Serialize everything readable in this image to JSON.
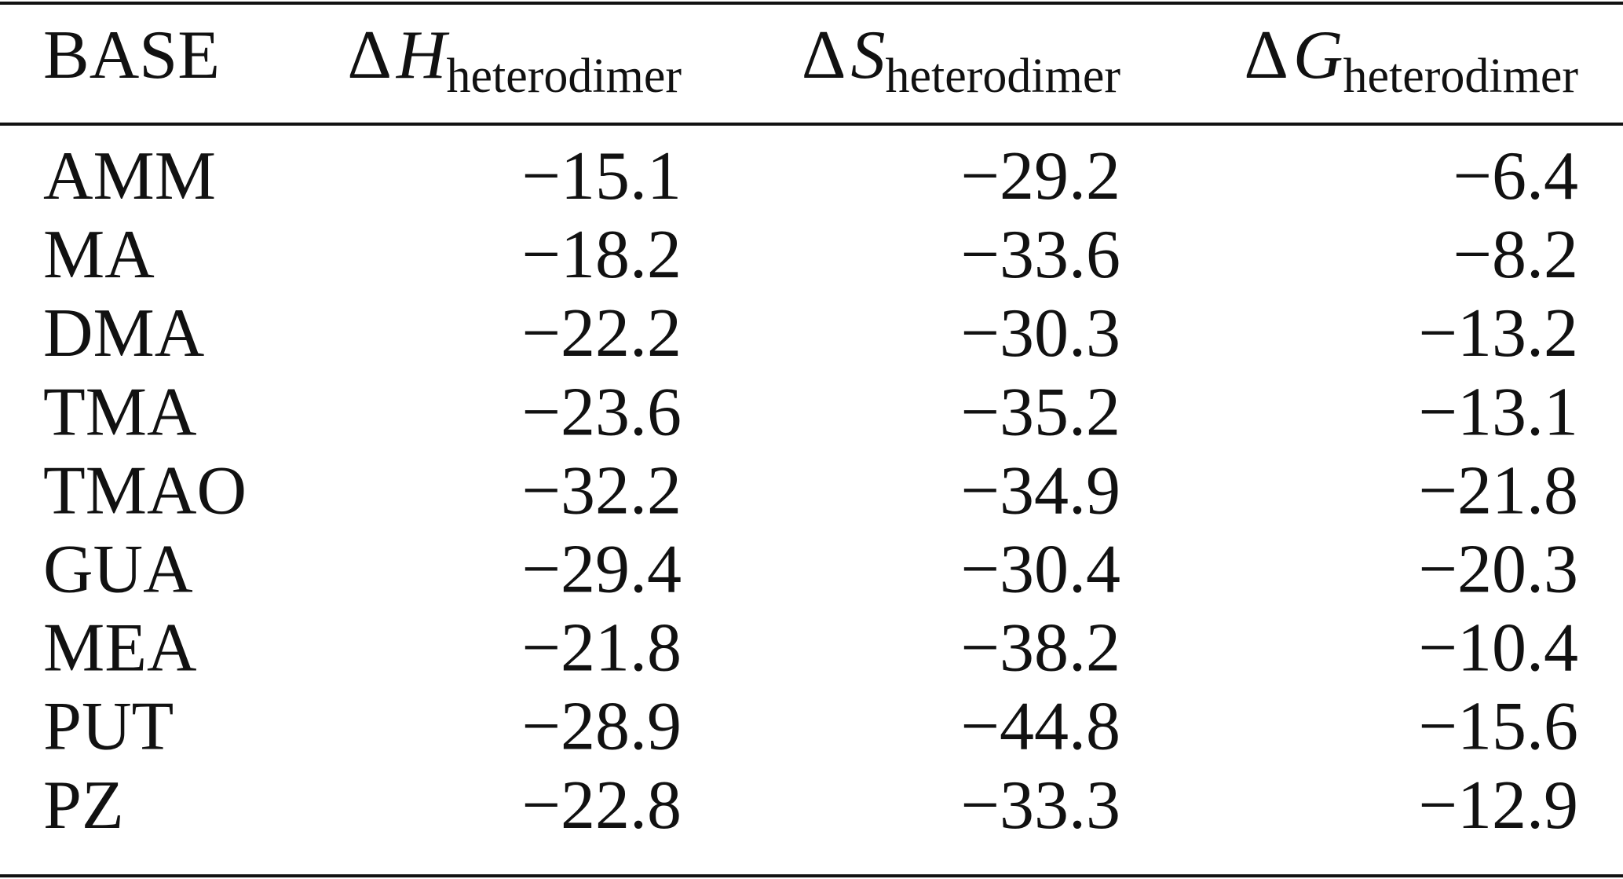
{
  "table": {
    "header": [
      "BASE",
      {
        "symbol": "Δ",
        "var": "H",
        "sub": "heterodimer"
      },
      {
        "symbol": "Δ",
        "var": "S",
        "sub": "heterodimer"
      },
      {
        "symbol": "Δ",
        "var": "G",
        "sub": "heterodimer"
      }
    ],
    "rows": [
      [
        "AMM",
        "−15.1",
        "−29.2",
        "−6.4"
      ],
      [
        "MA",
        "−18.2",
        "−33.6",
        "−8.2"
      ],
      [
        "DMA",
        "−22.2",
        "−30.3",
        "−13.2"
      ],
      [
        "TMA",
        "−23.6",
        "−35.2",
        "−13.1"
      ],
      [
        "TMAO",
        "−32.2",
        "−34.9",
        "−21.8"
      ],
      [
        "GUA",
        "−29.4",
        "−30.4",
        "−20.3"
      ],
      [
        "MEA",
        "−21.8",
        "−38.2",
        "−10.4"
      ],
      [
        "PUT",
        "−28.9",
        "−44.8",
        "−15.6"
      ],
      [
        "PZ",
        "−22.8",
        "−33.3",
        "−12.9"
      ]
    ]
  }
}
